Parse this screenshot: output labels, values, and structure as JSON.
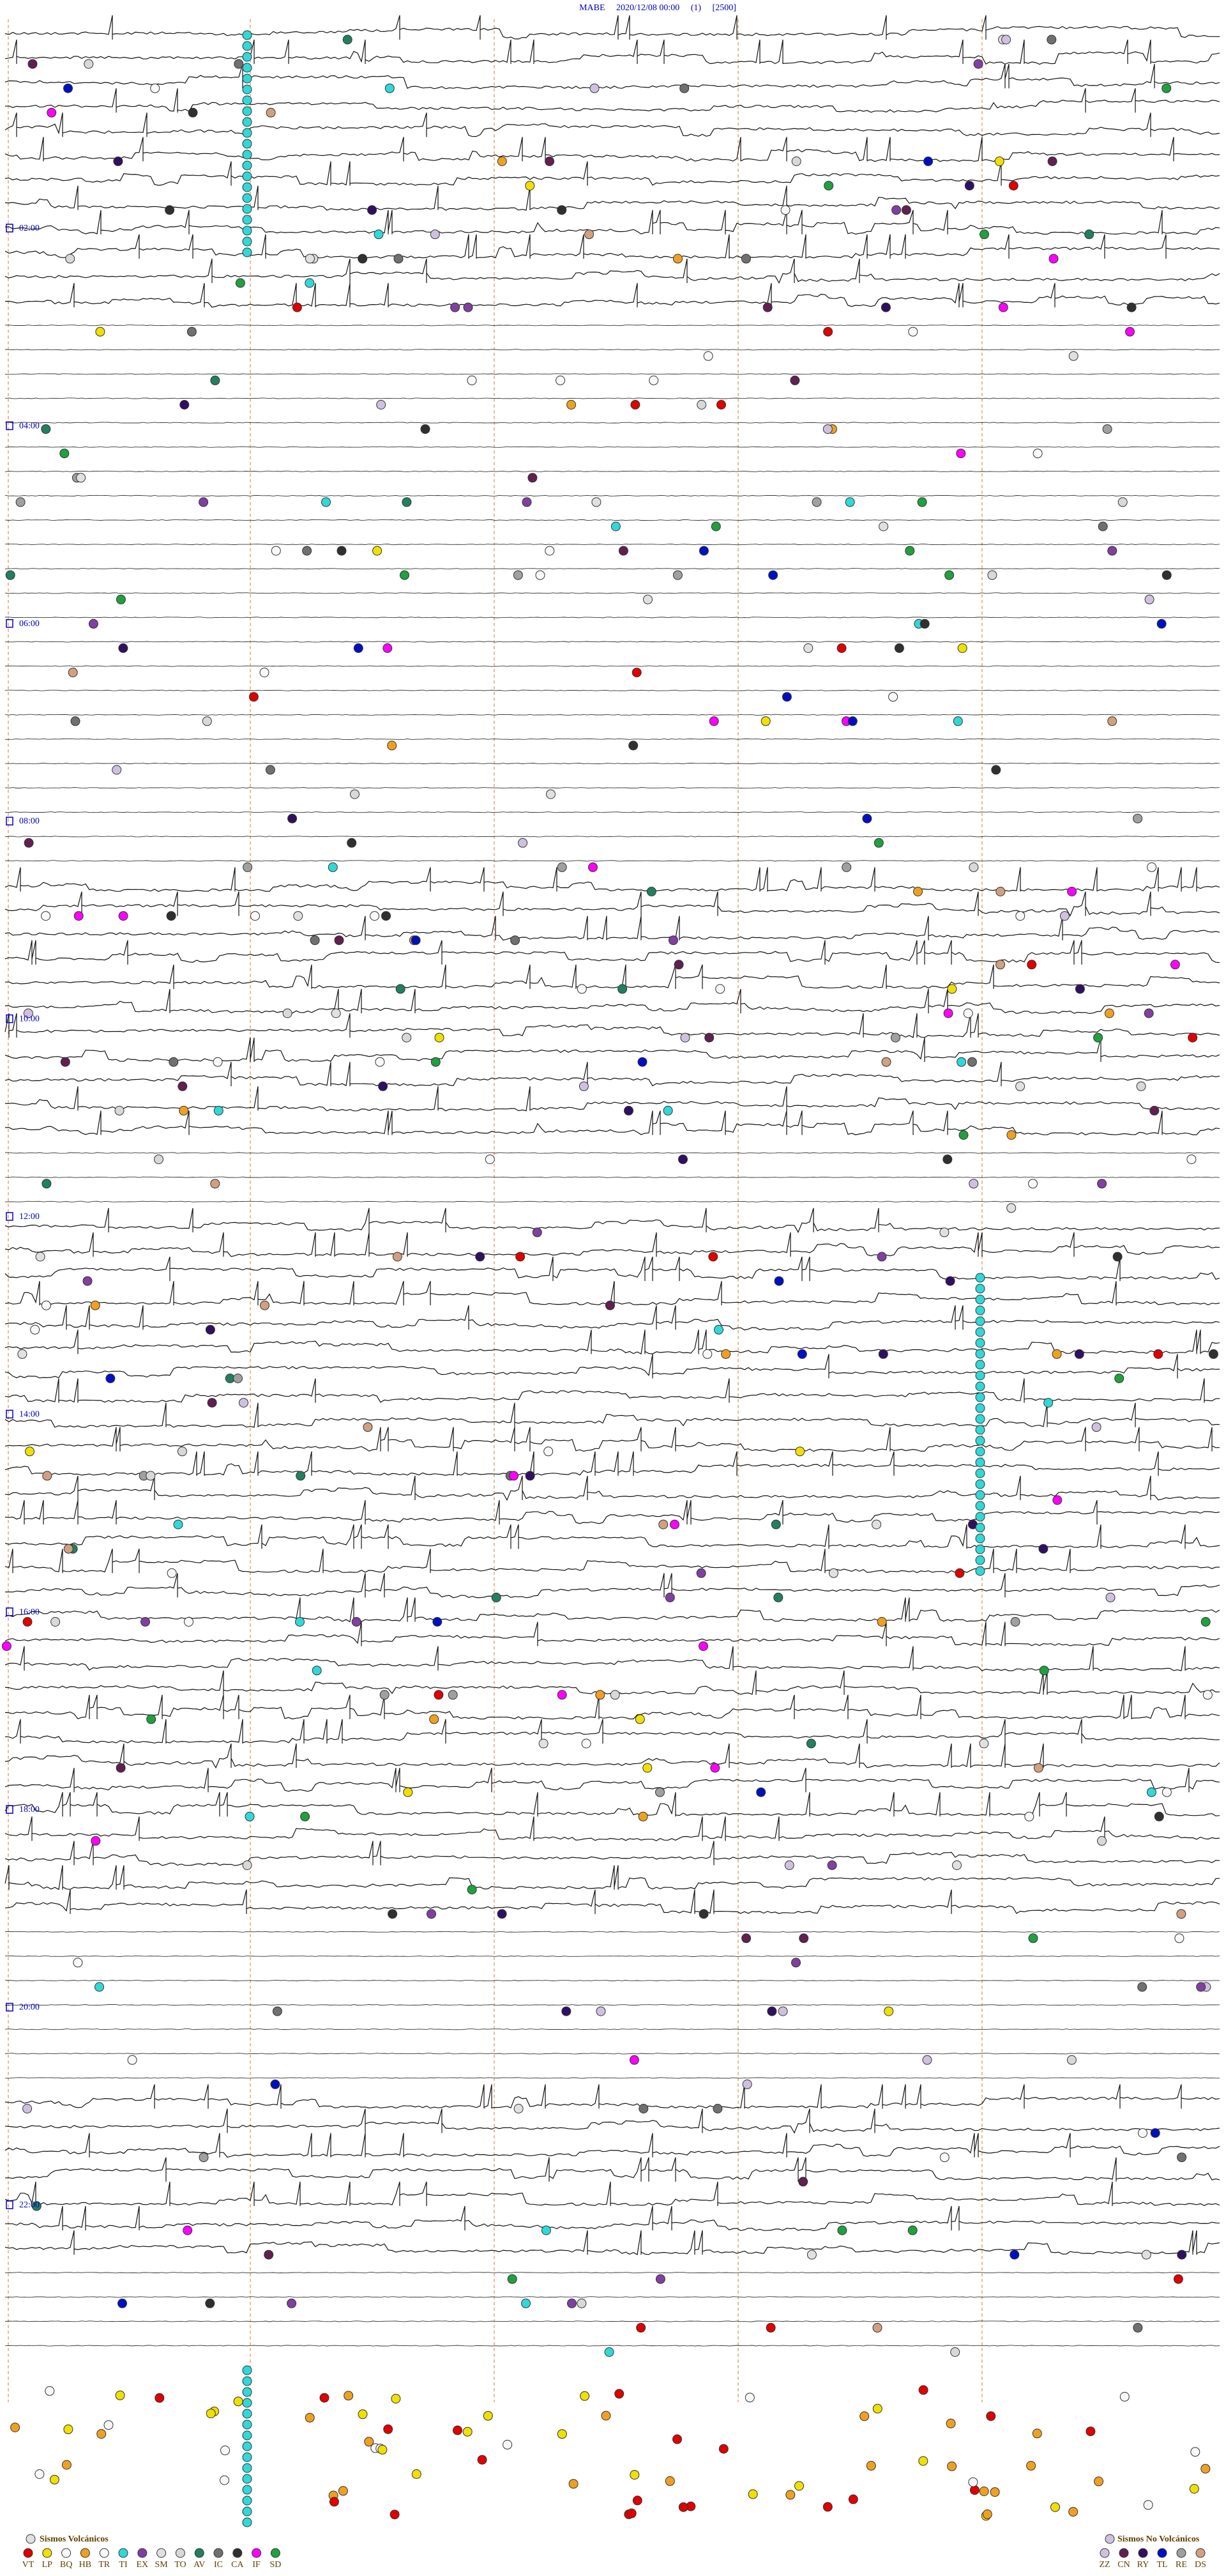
{
  "header": {
    "title": "MABE     2020/12/08 00:00     (1)     [2500]"
  },
  "hour_labels": [
    "02:00",
    "04:00",
    "06:00",
    "08:00",
    "10:00",
    "12:00",
    "14:00",
    "16:00",
    "18:00",
    "20:00",
    "22:00"
  ],
  "legend": {
    "volcanic": {
      "title": "Sismos Volcánicos",
      "items": [
        {
          "code": "VT",
          "color": "#e00000"
        },
        {
          "code": "LP",
          "color": "#f0e000"
        },
        {
          "code": "BQ",
          "color": "#f8f8f8"
        },
        {
          "code": "HB",
          "color": "#f0a020"
        },
        {
          "code": "TR",
          "color": "#f8f8f8"
        },
        {
          "code": "TI",
          "color": "#30d8d8"
        },
        {
          "code": "EX",
          "color": "#8040a0"
        },
        {
          "code": "SM",
          "color": "#e0e0e0"
        },
        {
          "code": "TO",
          "color": "#d8d8d8"
        },
        {
          "code": "AV",
          "color": "#208060"
        },
        {
          "code": "IC",
          "color": "#707070"
        },
        {
          "code": "CA",
          "color": "#303030"
        },
        {
          "code": "IF",
          "color": "#ff00ff"
        },
        {
          "code": "SD",
          "color": "#20a040"
        }
      ]
    },
    "non_volcanic": {
      "title": "Sismos No Volcánicos",
      "items": [
        {
          "code": "ZZ",
          "color": "#d0c0e0"
        },
        {
          "code": "CN",
          "color": "#602050"
        },
        {
          "code": "RY",
          "color": "#301060"
        },
        {
          "code": "TL",
          "color": "#0010c0"
        },
        {
          "code": "RE",
          "color": "#a0a0a0"
        },
        {
          "code": "DS",
          "color": "#d0a080"
        }
      ]
    }
  }
}
